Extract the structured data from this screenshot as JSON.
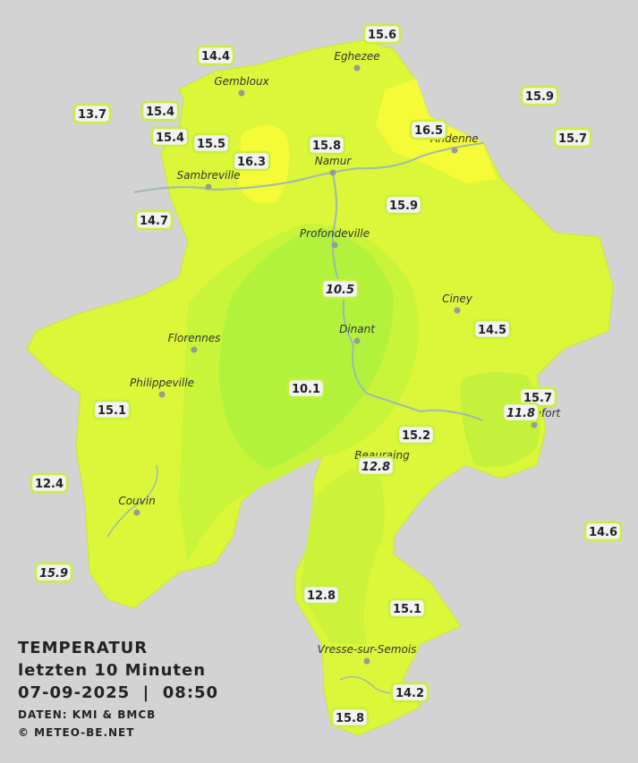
{
  "title": {
    "heading": "TEMPERATUR",
    "period": "letzten 10 Minuten",
    "datetime": "07-09-2025  |  08:50",
    "source": "DATEN: KMI & BMCB",
    "copyright": "© METEO-BE.NET"
  },
  "cities": [
    "Eghezee",
    "Gembloux",
    "Andenne",
    "Namur",
    "Sambreville",
    "Profondeville",
    "Ciney",
    "Florennes",
    "Dinant",
    "Philippeville",
    "Rochefort",
    "Beauraing",
    "Couvin",
    "Vresse-sur-Semois"
  ],
  "stations": [
    15.6,
    14.4,
    15.9,
    13.7,
    15.4,
    15.4,
    15.5,
    16.5,
    15.7,
    15.8,
    16.3,
    14.7,
    15.9,
    10.5,
    14.5,
    10.1,
    15.7,
    11.8,
    15.1,
    15.2,
    12.8,
    12.4,
    14.6,
    15.9,
    12.8,
    15.1,
    14.2,
    15.8
  ]
}
